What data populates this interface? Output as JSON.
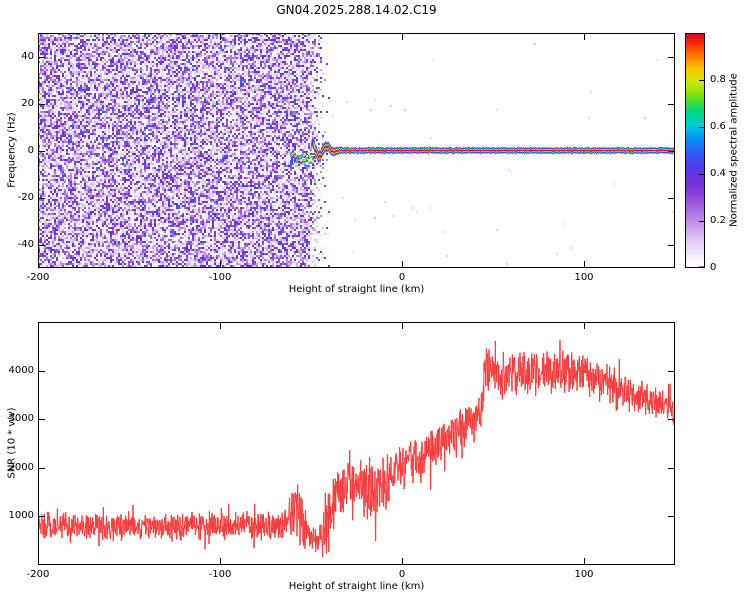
{
  "title": "GN04.2025.288.14.02.C19",
  "colors": {
    "background": "#ffffff",
    "axis": "#000000",
    "snr_line": "#fa3c3c",
    "noise_speckle": "#9040d8",
    "carrier_core": "#de0020"
  },
  "chart_data": [
    {
      "type": "heatmap",
      "panel": "spectrogram",
      "xlabel": "Height of straight line (km)",
      "ylabel": "Frequency (Hz)",
      "xlim": [
        -200,
        150
      ],
      "ylim": [
        -50,
        50
      ],
      "xticks": [
        -200,
        -100,
        0,
        100
      ],
      "yticks": [
        -40,
        -20,
        0,
        20,
        40
      ],
      "grid": false,
      "colorbar": {
        "label": "Normalized spectral amplitude",
        "ticks": [
          0,
          0.2,
          0.4,
          0.6,
          0.8
        ],
        "range": [
          0,
          1
        ],
        "colormap": "rainbow-white-low",
        "position": "right"
      },
      "features": {
        "broadband_noise": {
          "x_range": [
            -200,
            -52
          ],
          "freq_range": [
            -50,
            50
          ],
          "amplitude_range": [
            0,
            0.45
          ],
          "description": "dense purple speckle noise filling the panel"
        },
        "noise_cutoff": {
          "x": -52,
          "fade_km": 14,
          "description": "abrupt right edge of noise, speckle fades out by about -38 km"
        },
        "signal_onset_blob": {
          "x_range": [
            -62,
            -48
          ],
          "freq_range": [
            -7,
            1
          ],
          "amplitude_range": [
            0.35,
            0.9
          ],
          "description": "scattered blue/cyan/green detections just below 0 Hz"
        },
        "carrier_wobble": {
          "x_range": [
            -50,
            -32
          ],
          "freq_center_excursion": [
            -4,
            4
          ],
          "description": "wiggly rainbow trace settling toward 0 Hz"
        },
        "carrier_line": {
          "x_range": [
            -32,
            150
          ],
          "freq_center": 0,
          "half_width_hz": 1.5,
          "peak_amplitude": 1.0,
          "description": "flat narrow horizontal line, red core with yellow/green/cyan/purple fringes"
        }
      }
    },
    {
      "type": "line",
      "panel": "snr",
      "xlabel": "Height of straight line (km)",
      "ylabel": "SNR (10 * v/v)",
      "xlim": [
        -200,
        150
      ],
      "ylim": [
        0,
        5000
      ],
      "xticks": [
        -200,
        -100,
        0,
        100
      ],
      "yticks": [
        1000,
        2000,
        3000,
        4000
      ],
      "grid": false,
      "line_color": "#fa3c3c",
      "profile": [
        {
          "x": -200,
          "mean": 800,
          "noise": 330
        },
        {
          "x": -70,
          "mean": 820,
          "noise": 330
        },
        {
          "x": -63,
          "mean": 900,
          "noise": 480
        },
        {
          "x": -57,
          "mean": 1050,
          "noise": 800
        },
        {
          "x": -52,
          "mean": 650,
          "noise": 380
        },
        {
          "x": -46,
          "mean": 450,
          "noise": 230
        },
        {
          "x": -41,
          "mean": 900,
          "noise": 850
        },
        {
          "x": -36,
          "mean": 1400,
          "noise": 650
        },
        {
          "x": -28,
          "mean": 1700,
          "noise": 560
        },
        {
          "x": -20,
          "mean": 1550,
          "noise": 700
        },
        {
          "x": -14,
          "mean": 1450,
          "noise": 800
        },
        {
          "x": -6,
          "mean": 1900,
          "noise": 560
        },
        {
          "x": 5,
          "mean": 2100,
          "noise": 520
        },
        {
          "x": 18,
          "mean": 2450,
          "noise": 500
        },
        {
          "x": 32,
          "mean": 2800,
          "noise": 500
        },
        {
          "x": 43,
          "mean": 3100,
          "noise": 460
        },
        {
          "x": 46,
          "mean": 4050,
          "noise": 600
        },
        {
          "x": 55,
          "mean": 3900,
          "noise": 560
        },
        {
          "x": 70,
          "mean": 3950,
          "noise": 520
        },
        {
          "x": 88,
          "mean": 4000,
          "noise": 560
        },
        {
          "x": 100,
          "mean": 3900,
          "noise": 500
        },
        {
          "x": 115,
          "mean": 3700,
          "noise": 450
        },
        {
          "x": 132,
          "mean": 3450,
          "noise": 380
        },
        {
          "x": 150,
          "mean": 3200,
          "noise": 320
        }
      ]
    }
  ]
}
